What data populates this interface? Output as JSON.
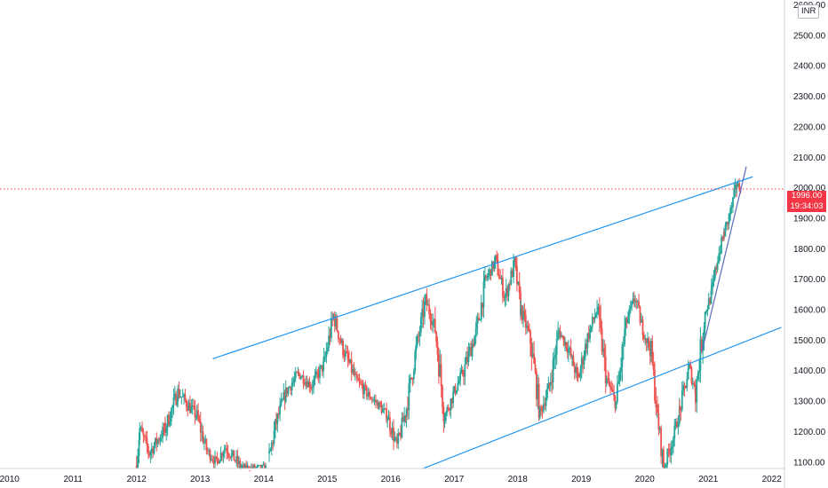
{
  "header": {
    "currency": "INR"
  },
  "current_price": {
    "price_label": "1996.00",
    "countdown": "19:34:03",
    "value": 1996
  },
  "colors": {
    "up": "#26a69a",
    "down": "#ef5350",
    "trendline": "#2196f3",
    "steep_trendline": "#5c6bc0",
    "price_line": "#f23645",
    "axis": "#131722"
  },
  "chart_data": {
    "type": "candlestick",
    "x_ticks": [
      "2010",
      "2011",
      "2012",
      "2013",
      "2014",
      "2015",
      "2016",
      "2017",
      "2018",
      "2019",
      "2020",
      "2021",
      "2022"
    ],
    "y_ticks": [
      "1100.00",
      "1200.00",
      "1300.00",
      "1400.00",
      "1500.00",
      "1600.00",
      "1700.00",
      "1800.00",
      "1900.00",
      "2000.00",
      "2100.00",
      "2200.00",
      "2300.00",
      "2400.00",
      "2500.00",
      "2600.00"
    ],
    "xlim": [
      2009.9,
      2022.25
    ],
    "ylim": [
      1079,
      2616
    ],
    "grid": false,
    "price_path": [
      [
        2012.05,
        1090
      ],
      [
        2012.1,
        1210
      ],
      [
        2012.25,
        1130
      ],
      [
        2012.5,
        1210
      ],
      [
        2012.7,
        1330
      ],
      [
        2013.0,
        1250
      ],
      [
        2013.15,
        1140
      ],
      [
        2013.3,
        1100
      ],
      [
        2013.45,
        1150
      ],
      [
        2013.7,
        1080
      ],
      [
        2014.1,
        1080
      ],
      [
        2014.25,
        1230
      ],
      [
        2014.4,
        1330
      ],
      [
        2014.6,
        1390
      ],
      [
        2014.8,
        1350
      ],
      [
        2015.0,
        1420
      ],
      [
        2015.15,
        1580
      ],
      [
        2015.3,
        1470
      ],
      [
        2015.5,
        1370
      ],
      [
        2015.7,
        1320
      ],
      [
        2015.85,
        1290
      ],
      [
        2016.0,
        1250
      ],
      [
        2016.15,
        1150
      ],
      [
        2016.3,
        1280
      ],
      [
        2016.45,
        1470
      ],
      [
        2016.6,
        1630
      ],
      [
        2016.75,
        1540
      ],
      [
        2016.9,
        1250
      ],
      [
        2017.05,
        1330
      ],
      [
        2017.2,
        1400
      ],
      [
        2017.4,
        1530
      ],
      [
        2017.55,
        1700
      ],
      [
        2017.7,
        1760
      ],
      [
        2017.85,
        1640
      ],
      [
        2018.0,
        1750
      ],
      [
        2018.1,
        1600
      ],
      [
        2018.25,
        1500
      ],
      [
        2018.4,
        1260
      ],
      [
        2018.55,
        1350
      ],
      [
        2018.7,
        1530
      ],
      [
        2018.85,
        1470
      ],
      [
        2019.0,
        1370
      ],
      [
        2019.15,
        1510
      ],
      [
        2019.3,
        1600
      ],
      [
        2019.45,
        1370
      ],
      [
        2019.6,
        1290
      ],
      [
        2019.75,
        1550
      ],
      [
        2019.9,
        1640
      ],
      [
        2020.0,
        1550
      ],
      [
        2020.15,
        1460
      ],
      [
        2020.25,
        1250
      ],
      [
        2020.35,
        1080
      ],
      [
        2020.5,
        1180
      ],
      [
        2020.6,
        1270
      ],
      [
        2020.75,
        1410
      ],
      [
        2020.85,
        1330
      ],
      [
        2021.0,
        1590
      ],
      [
        2021.1,
        1650
      ],
      [
        2021.2,
        1770
      ],
      [
        2021.3,
        1850
      ],
      [
        2021.4,
        1920
      ],
      [
        2021.5,
        2010
      ],
      [
        2021.57,
        1996
      ]
    ],
    "lines": [
      {
        "name": "upper channel",
        "from": [
          2013.25,
          1439
        ],
        "to": [
          2021.75,
          2036
        ]
      },
      {
        "name": "lower channel",
        "from": [
          2016.55,
          1078
        ],
        "to": [
          2022.2,
          1542
        ]
      },
      {
        "name": "steep support",
        "from": [
          2020.95,
          1462
        ],
        "to": [
          2021.65,
          2070
        ]
      },
      {
        "name": "current price",
        "from": [
          2009.9,
          1996
        ],
        "to": [
          2022.25,
          1996
        ]
      }
    ]
  }
}
